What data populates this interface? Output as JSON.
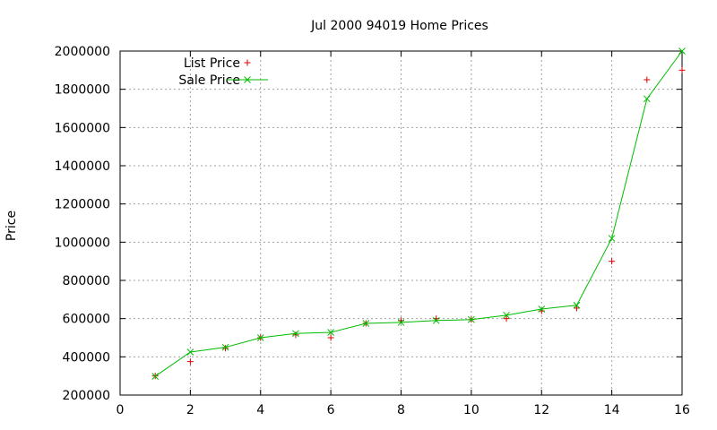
{
  "chart_data": {
    "type": "line",
    "title": "Jul 2000 94019 Home Prices",
    "xlabel": "",
    "ylabel": "Price",
    "xlim": [
      0,
      16
    ],
    "ylim": [
      200000,
      2000000
    ],
    "xticks": [
      0,
      2,
      4,
      6,
      8,
      10,
      12,
      14,
      16
    ],
    "yticks": [
      200000,
      400000,
      600000,
      800000,
      1000000,
      1200000,
      1400000,
      1600000,
      1800000,
      2000000
    ],
    "grid": true,
    "legend_position": "top-left",
    "series": [
      {
        "name": "List Price",
        "style": "points",
        "marker": "plus",
        "color": "#dd0000",
        "x": [
          1,
          2,
          3,
          4,
          5,
          6,
          7,
          8,
          9,
          10,
          11,
          12,
          13,
          14,
          15,
          16
        ],
        "values": [
          300000,
          375000,
          445000,
          500000,
          515000,
          500000,
          575000,
          590000,
          600000,
          595000,
          600000,
          640000,
          655000,
          900000,
          1850000,
          1900000
        ]
      },
      {
        "name": "Sale Price",
        "style": "linespoints",
        "marker": "cross",
        "color": "#00bb00",
        "x": [
          1,
          2,
          3,
          4,
          5,
          6,
          7,
          8,
          9,
          10,
          11,
          12,
          13,
          14,
          15,
          16
        ],
        "values": [
          298000,
          425000,
          450000,
          500000,
          522000,
          528000,
          575000,
          580000,
          590000,
          595000,
          618000,
          650000,
          670000,
          1020000,
          1750000,
          2000000
        ]
      }
    ]
  }
}
